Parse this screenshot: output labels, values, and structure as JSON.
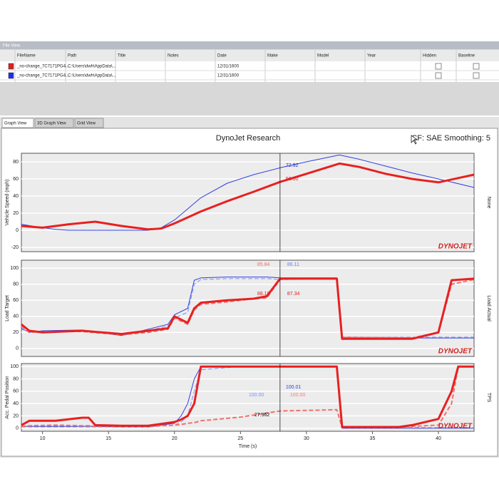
{
  "file_view": {
    "title": "File View",
    "columns": [
      "FileName",
      "Path",
      "Title",
      "Notes",
      "Date",
      "Make",
      "Model",
      "Year",
      "Hidden",
      "Baseline"
    ],
    "rows": [
      {
        "color": "#e02020",
        "file": "_no-change_7C7171PG4...",
        "path": "C:\\Users\\dwh\\AppData\\...",
        "date": "12/31/1600"
      },
      {
        "color": "#2030e0",
        "file": "_no-change_7C7171PG4...",
        "path": "C:\\Users\\dwh\\AppData\\...",
        "date": "12/31/1600"
      }
    ]
  },
  "tabs": [
    "Graph View",
    "3D Graph View",
    "Grid View"
  ],
  "graph": {
    "title": "DynoJet Research",
    "info": "CF: SAE Smoothing: 5"
  },
  "chart_data": [
    {
      "type": "line",
      "ylabel": "Vehicle Speed (mph)",
      "y2label": "None",
      "logo": "DYNOJET",
      "xlim": [
        8.4,
        42.7
      ],
      "ylim": [
        -25,
        90
      ],
      "yticks": [
        -20,
        0,
        20,
        40,
        60,
        80
      ],
      "cursor": 28,
      "x": [
        8.4,
        10,
        11,
        12,
        14,
        16,
        18,
        19,
        20,
        21,
        22,
        24,
        26,
        28,
        30,
        32.5,
        34,
        36,
        38,
        40,
        42.7
      ],
      "series": [
        {
          "color": "#3040e0",
          "width": 1,
          "values": [
            7,
            3,
            1,
            0,
            0,
            0,
            0,
            3,
            12,
            25,
            38,
            55,
            65,
            73,
            80,
            88,
            83,
            75,
            67,
            60,
            50
          ]
        },
        {
          "color": "#e82020",
          "width": 3,
          "values": [
            5,
            3,
            5,
            7,
            10,
            5,
            1,
            2,
            8,
            15,
            22,
            34,
            45,
            56.5,
            66,
            78,
            74,
            66,
            60,
            56,
            65
          ]
        }
      ],
      "annotations": [
        {
          "label": "72.92",
          "color": "#2030c0"
        },
        {
          "label": "56.50",
          "color": "#e02020"
        }
      ]
    },
    {
      "type": "line",
      "ylabel": "Load Target",
      "y2label": "Load Actual",
      "logo": "DYNOJET",
      "xlim": [
        8.4,
        42.7
      ],
      "ylim": [
        -10,
        110
      ],
      "yticks": [
        0,
        20,
        40,
        60,
        80,
        100
      ],
      "cursor": 28,
      "x": [
        8.4,
        9,
        10,
        13,
        16,
        18,
        19.5,
        20,
        21,
        21.5,
        22,
        24,
        26,
        27,
        28,
        30,
        32.3,
        32.7,
        38,
        40,
        41,
        42.7
      ],
      "series": [
        {
          "color": "#3040e0",
          "width": 1,
          "values": [
            25,
            20,
            22,
            23,
            16,
            24,
            30,
            42,
            50,
            85,
            88,
            89,
            89,
            89,
            88,
            88,
            88,
            13,
            13,
            13,
            13,
            13
          ]
        },
        {
          "color": "#8090f0",
          "width": 1,
          "dashed": true,
          "values": [
            24,
            21,
            21,
            22,
            18,
            22,
            28,
            38,
            45,
            80,
            86,
            87,
            87,
            87,
            86,
            87,
            87,
            14,
            14,
            14,
            14,
            14
          ]
        },
        {
          "color": "#f07070",
          "width": 2,
          "dashed": true,
          "values": [
            28,
            20,
            21,
            21,
            17,
            20,
            24,
            38,
            30,
            48,
            55,
            58,
            62,
            63,
            86,
            87,
            87,
            14,
            13,
            20,
            80,
            86
          ]
        },
        {
          "color": "#e82020",
          "width": 3,
          "values": [
            30,
            22,
            20,
            22,
            18,
            22,
            25,
            40,
            32,
            50,
            57,
            60,
            62,
            65,
            87,
            87,
            87,
            12,
            12,
            20,
            85,
            87
          ]
        }
      ],
      "annotations": [
        {
          "label": "85.84",
          "color": "#f07070"
        },
        {
          "label": "86.11",
          "color": "#7080f0"
        },
        {
          "label": "88.18",
          "color": "#e02020"
        },
        {
          "label": "87.34",
          "color": "#e02020"
        }
      ]
    },
    {
      "type": "line",
      "ylabel": "Acc. Pedal Position",
      "y2label": "TPS",
      "logo": "DYNOJET",
      "xlabel": "Time (s)",
      "xlim": [
        8.4,
        42.7
      ],
      "xticks": [
        10,
        15,
        20,
        25,
        30,
        35,
        40
      ],
      "ylim": [
        -5,
        105
      ],
      "yticks": [
        0,
        20,
        40,
        60,
        80,
        100
      ],
      "cursor": 28,
      "x": [
        8.4,
        9,
        11,
        13,
        13.5,
        14,
        16,
        18,
        20,
        20.5,
        21,
        21.5,
        22,
        25,
        28,
        32.3,
        32.7,
        37,
        38,
        40,
        41,
        41.5,
        42.7
      ],
      "series": [
        {
          "color": "#3040e0",
          "width": 1,
          "values": [
            3,
            3,
            3,
            3,
            3,
            3,
            2,
            2,
            8,
            20,
            40,
            80,
            100,
            100,
            100,
            100,
            0,
            0,
            0,
            0,
            0,
            0,
            0
          ]
        },
        {
          "color": "#8090f0",
          "width": 1,
          "dashed": true,
          "values": [
            2,
            2,
            2,
            2,
            2,
            2,
            2,
            2,
            5,
            10,
            20,
            60,
            95,
            100,
            100,
            100,
            1,
            1,
            1,
            1,
            1,
            1,
            1
          ]
        },
        {
          "color": "#f07070",
          "width": 2,
          "dashed": true,
          "values": [
            3,
            4,
            5,
            4,
            4,
            3,
            3,
            3,
            5,
            6,
            8,
            9,
            12,
            18,
            28,
            30,
            1,
            1,
            3,
            5,
            40,
            100,
            100
          ]
        },
        {
          "color": "#e82020",
          "width": 3,
          "values": [
            5,
            12,
            12,
            17,
            17,
            5,
            4,
            4,
            10,
            14,
            20,
            40,
            100,
            100,
            100,
            100,
            2,
            2,
            5,
            15,
            60,
            100,
            100
          ]
        }
      ],
      "annotations": [
        {
          "label": "100.01",
          "color": "#3040e0"
        },
        {
          "label": "100.00",
          "color": "#8090f0"
        },
        {
          "label": "100.00",
          "color": "#f08080"
        },
        {
          "label": "27.962",
          "color": "#000000"
        }
      ]
    }
  ]
}
